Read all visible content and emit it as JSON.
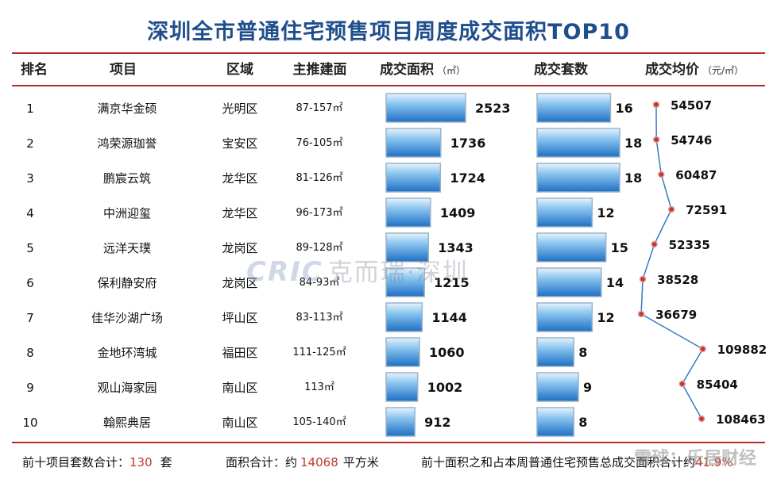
{
  "title": "深圳全市普通住宅预售项目周度成交面积TOP10",
  "headers": {
    "rank": "排名",
    "project": "项目",
    "district": "区域",
    "area_range": "主推建面",
    "deal_area": "成交面积",
    "deal_area_unit": "（㎡）",
    "deal_units": "成交套数",
    "avg_price": "成交均价",
    "avg_price_unit": "（元/㎡）"
  },
  "rows": [
    {
      "rank": "1",
      "project": "满京华金硕",
      "district": "光明区",
      "area_range": "87-157㎡"
    },
    {
      "rank": "2",
      "project": "鸿荣源珈誉",
      "district": "宝安区",
      "area_range": "76-105㎡"
    },
    {
      "rank": "3",
      "project": "鹏宸云筑",
      "district": "龙华区",
      "area_range": "81-126㎡"
    },
    {
      "rank": "4",
      "project": "中洲迎玺",
      "district": "龙华区",
      "area_range": "96-173㎡"
    },
    {
      "rank": "5",
      "project": "远洋天璞",
      "district": "龙岗区",
      "area_range": "89-128㎡"
    },
    {
      "rank": "6",
      "project": "保利静安府",
      "district": "龙岗区",
      "area_range": "84-93㎡"
    },
    {
      "rank": "7",
      "project": "佳华沙湖广场",
      "district": "坪山区",
      "area_range": "83-113㎡"
    },
    {
      "rank": "8",
      "project": "金地环湾城",
      "district": "福田区",
      "area_range": "111-125㎡"
    },
    {
      "rank": "9",
      "project": "观山海家园",
      "district": "南山区",
      "area_range": "113㎡"
    },
    {
      "rank": "10",
      "project": "翰熙典居",
      "district": "南山区",
      "area_range": "105-140㎡"
    }
  ],
  "chart_data": [
    {
      "type": "bar",
      "name": "成交面积",
      "categories": [
        "满京华金硕",
        "鸿荣源珈誉",
        "鹏宸云筑",
        "中洲迎玺",
        "远洋天璞",
        "保利静安府",
        "佳华沙湖广场",
        "金地环湾城",
        "观山海家园",
        "翰熙典居"
      ],
      "values": [
        2523,
        1736,
        1724,
        1409,
        1343,
        1215,
        1144,
        1060,
        1002,
        912
      ],
      "orientation": "horizontal",
      "color": "#2a7fd0"
    },
    {
      "type": "bar",
      "name": "成交套数",
      "categories": [
        "满京华金硕",
        "鸿荣源珈誉",
        "鹏宸云筑",
        "中洲迎玺",
        "远洋天璞",
        "保利静安府",
        "佳华沙湖广场",
        "金地环湾城",
        "观山海家园",
        "翰熙典居"
      ],
      "values": [
        16,
        18,
        18,
        12,
        15,
        14,
        12,
        8,
        9,
        8
      ],
      "orientation": "horizontal",
      "color": "#2a7fd0"
    },
    {
      "type": "line",
      "name": "成交均价",
      "categories": [
        "满京华金硕",
        "鸿荣源珈誉",
        "鹏宸云筑",
        "中洲迎玺",
        "远洋天璞",
        "保利静安府",
        "佳华沙湖广场",
        "金地环湾城",
        "观山海家园",
        "翰熙典居"
      ],
      "values": [
        54507,
        54746,
        60487,
        72591,
        52335,
        38528,
        36679,
        109882,
        85404,
        108463
      ],
      "orientation": "vertical",
      "line_color": "#3a78c2",
      "marker_color": "#c0392b"
    }
  ],
  "watermark": {
    "brand": "CRIC",
    "text": "克而瑞·深圳"
  },
  "footer": {
    "units_label": "前十项目套数合计：",
    "units_value": "130",
    "units_suffix": "套",
    "area_label": "面积合计：约",
    "area_value": "14068",
    "area_suffix": "平方米",
    "share_label": "前十面积之和占本周普通住宅预售总成交面积合计约",
    "share_value": "41.9%"
  },
  "corner_watermark": "雪球：乐居财经"
}
